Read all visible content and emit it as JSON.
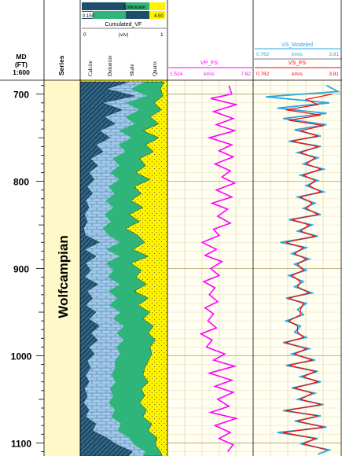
{
  "header": {
    "md_line1": "MD",
    "md_line2": "(FT)",
    "md_line3": "1:600",
    "series_label": "Series",
    "formation_name": "Wolfcampian",
    "lith_unknown_label": "Unknown",
    "lith_min": "0.150",
    "lith_max": "4.50",
    "cum_title": "Cumulated_VF",
    "cum_unit": "(v/v)",
    "cum_min": "0",
    "cum_max": "1",
    "lith_names": [
      "Calcite",
      "Dolomite",
      "Shale",
      "Quartz"
    ],
    "vp_name": "VP_FS",
    "vp_min": "1.524",
    "vp_unit": "km/s",
    "vp_max": "7.62",
    "vsmod_name": "VS_Modeled",
    "vsmod_min": "0.762",
    "vsmod_unit": "km/s",
    "vsmod_max": "3.81",
    "vs_name": "VS_FS",
    "vs_min": "0.762",
    "vs_unit": "km/s",
    "vs_max": "3.81"
  },
  "colors": {
    "calcite": "#9fc9ec",
    "dolomite": "#1f4e6b",
    "shale": "#2fb57a",
    "quartz": "#fff200",
    "vp": "#ff00ff",
    "vs_modeled": "#29a8e0",
    "vs": "#ff0000",
    "series_fill": "#fff8c8"
  },
  "chart_data": {
    "type": "line",
    "depth_ticks": [
      700,
      800,
      900,
      1000,
      1100
    ],
    "depth_range": [
      684,
      1115
    ],
    "series": [
      {
        "name": "VP_FS",
        "depth": [
          690,
          700,
          705,
          712,
          720,
          728,
          735,
          742,
          750,
          758,
          765,
          772,
          780,
          788,
          795,
          802,
          810,
          818,
          825,
          832,
          840,
          848,
          855,
          862,
          870,
          878,
          885,
          892,
          900,
          908,
          915,
          922,
          930,
          938,
          945,
          952,
          960,
          968,
          975,
          982,
          990,
          998,
          1005,
          1012,
          1020,
          1028,
          1035,
          1042,
          1050,
          1058,
          1065,
          1072,
          1080,
          1088,
          1095,
          1102,
          1110
        ],
        "values": [
          5.9,
          6.1,
          4.6,
          6.4,
          4.8,
          6.2,
          5.0,
          6.3,
          4.5,
          6.1,
          5.2,
          6.2,
          4.9,
          6.0,
          5.4,
          6.3,
          5.0,
          6.1,
          4.7,
          5.8,
          5.1,
          6.0,
          4.8,
          5.2,
          4.0,
          5.0,
          4.2,
          5.4,
          4.6,
          5.2,
          4.1,
          4.9,
          4.5,
          5.1,
          4.2,
          4.8,
          4.4,
          5.0,
          3.9,
          4.7,
          4.3,
          5.6,
          4.8,
          6.3,
          4.5,
          6.1,
          4.9,
          6.2,
          5.1,
          5.9,
          4.6,
          6.4,
          4.9,
          6.0,
          5.2,
          6.2,
          5.8
        ]
      },
      {
        "name": "VS_Modeled",
        "depth": [
          690,
          697,
          703,
          710,
          716,
          722,
          728,
          735,
          741,
          748,
          754,
          760,
          767,
          773,
          780,
          786,
          793,
          799,
          805,
          812,
          818,
          825,
          831,
          838,
          844,
          850,
          857,
          863,
          870,
          876,
          883,
          889,
          895,
          902,
          908,
          915,
          921,
          928,
          934,
          940,
          947,
          953,
          960,
          966,
          973,
          979,
          985,
          992,
          998,
          1005,
          1011,
          1018,
          1024,
          1030,
          1037,
          1043,
          1050,
          1056,
          1063,
          1069,
          1075,
          1082,
          1088,
          1095,
          1101,
          1108,
          1113
        ],
        "values": [
          3.3,
          3.7,
          1.2,
          3.4,
          1.6,
          3.3,
          1.8,
          3.3,
          2.2,
          3.1,
          2.0,
          3.1,
          2.3,
          3.0,
          2.5,
          3.2,
          2.4,
          3.0,
          2.6,
          3.2,
          2.3,
          2.9,
          2.5,
          3.1,
          2.0,
          2.8,
          2.3,
          3.0,
          1.7,
          2.6,
          2.1,
          2.7,
          2.2,
          2.6,
          2.0,
          2.5,
          2.2,
          2.8,
          1.9,
          2.6,
          2.3,
          2.5,
          1.9,
          2.4,
          2.2,
          2.6,
          1.8,
          2.7,
          2.1,
          2.9,
          1.9,
          3.0,
          2.4,
          3.1,
          2.1,
          2.9,
          2.3,
          3.2,
          1.8,
          3.1,
          2.2,
          3.3,
          1.6,
          3.0,
          2.4,
          3.4,
          3.0
        ]
      },
      {
        "name": "VS_FS",
        "depth": [
          700,
          706,
          712,
          718,
          724,
          730,
          736,
          742,
          748,
          754,
          760,
          767,
          773,
          780,
          786,
          793,
          799,
          805,
          812,
          818,
          825,
          831,
          838,
          844,
          850,
          857,
          863,
          870,
          876,
          883,
          889,
          895,
          902,
          908,
          915,
          921,
          928,
          934,
          940,
          947,
          953,
          960,
          966,
          973,
          979,
          985,
          992,
          998,
          1005,
          1011,
          1018,
          1024,
          1030,
          1037,
          1043,
          1050,
          1056,
          1063,
          1069,
          1075,
          1082,
          1088,
          1095,
          1101,
          1108
        ],
        "values": [
          3.5,
          2.6,
          3.0,
          1.9,
          3.1,
          2.0,
          3.2,
          2.4,
          3.0,
          2.1,
          3.0,
          2.4,
          2.9,
          2.6,
          3.1,
          2.5,
          2.9,
          2.7,
          3.1,
          2.4,
          2.8,
          2.6,
          3.0,
          2.1,
          2.7,
          2.4,
          2.9,
          1.9,
          2.5,
          2.2,
          2.6,
          2.3,
          2.5,
          2.1,
          2.4,
          2.3,
          2.7,
          2.0,
          2.5,
          2.4,
          2.4,
          2.0,
          2.3,
          2.3,
          2.5,
          1.9,
          2.6,
          2.2,
          2.8,
          2.0,
          2.9,
          2.5,
          3.0,
          2.2,
          2.8,
          2.4,
          3.1,
          1.9,
          3.0,
          2.3,
          3.2,
          1.8,
          2.9,
          2.5,
          3.3
        ]
      },
      {
        "name": "Shale_cumulated_boundary",
        "depth": [
          686,
          694,
          702,
          710,
          718,
          726,
          734,
          742,
          750,
          758,
          766,
          774,
          782,
          790,
          798,
          806,
          814,
          822,
          830,
          838,
          846,
          854,
          862,
          870,
          878,
          886,
          894,
          902,
          910,
          918,
          926,
          934,
          942,
          950,
          958,
          966,
          974,
          982,
          990,
          998,
          1006,
          1014,
          1022,
          1030,
          1038,
          1046,
          1054,
          1062,
          1070,
          1078,
          1086,
          1094,
          1102,
          1110,
          1115
        ],
        "values": [
          0.96,
          0.92,
          0.95,
          0.85,
          0.93,
          0.8,
          0.9,
          0.72,
          0.9,
          0.75,
          0.84,
          0.68,
          0.75,
          0.64,
          0.8,
          0.62,
          0.7,
          0.58,
          0.72,
          0.56,
          0.68,
          0.52,
          0.66,
          0.74,
          0.6,
          0.78,
          0.58,
          0.7,
          0.64,
          0.76,
          0.62,
          0.78,
          0.66,
          0.8,
          0.72,
          0.84,
          0.78,
          0.86,
          0.8,
          0.82,
          0.78,
          0.74,
          0.72,
          0.78,
          0.7,
          0.74,
          0.68,
          0.76,
          0.72,
          0.82,
          0.78,
          0.88,
          0.86,
          0.92,
          0.94
        ]
      },
      {
        "name": "Dolomite_cumulated_boundary",
        "depth": [
          686,
          694,
          702,
          710,
          718,
          726,
          734,
          742,
          750,
          758,
          766,
          774,
          782,
          790,
          798,
          806,
          814,
          822,
          830,
          838,
          846,
          854,
          862,
          870,
          878,
          886,
          894,
          902,
          910,
          918,
          926,
          934,
          942,
          950,
          958,
          966,
          974,
          982,
          990,
          998,
          1006,
          1014,
          1022,
          1030,
          1038,
          1046,
          1054,
          1062,
          1070,
          1078,
          1086,
          1094,
          1102,
          1110,
          1115
        ],
        "values": [
          0.55,
          0.3,
          0.62,
          0.25,
          0.48,
          0.28,
          0.4,
          0.22,
          0.34,
          0.18,
          0.26,
          0.12,
          0.2,
          0.1,
          0.16,
          0.08,
          0.14,
          0.06,
          0.1,
          0.05,
          0.08,
          0.04,
          0.06,
          0.22,
          0.05,
          0.18,
          0.06,
          0.12,
          0.05,
          0.2,
          0.08,
          0.14,
          0.06,
          0.18,
          0.1,
          0.22,
          0.12,
          0.2,
          0.1,
          0.16,
          0.08,
          0.12,
          0.06,
          0.1,
          0.05,
          0.08,
          0.04,
          0.1,
          0.06,
          0.18,
          0.14,
          0.3,
          0.42,
          0.6,
          0.55
        ]
      }
    ]
  }
}
